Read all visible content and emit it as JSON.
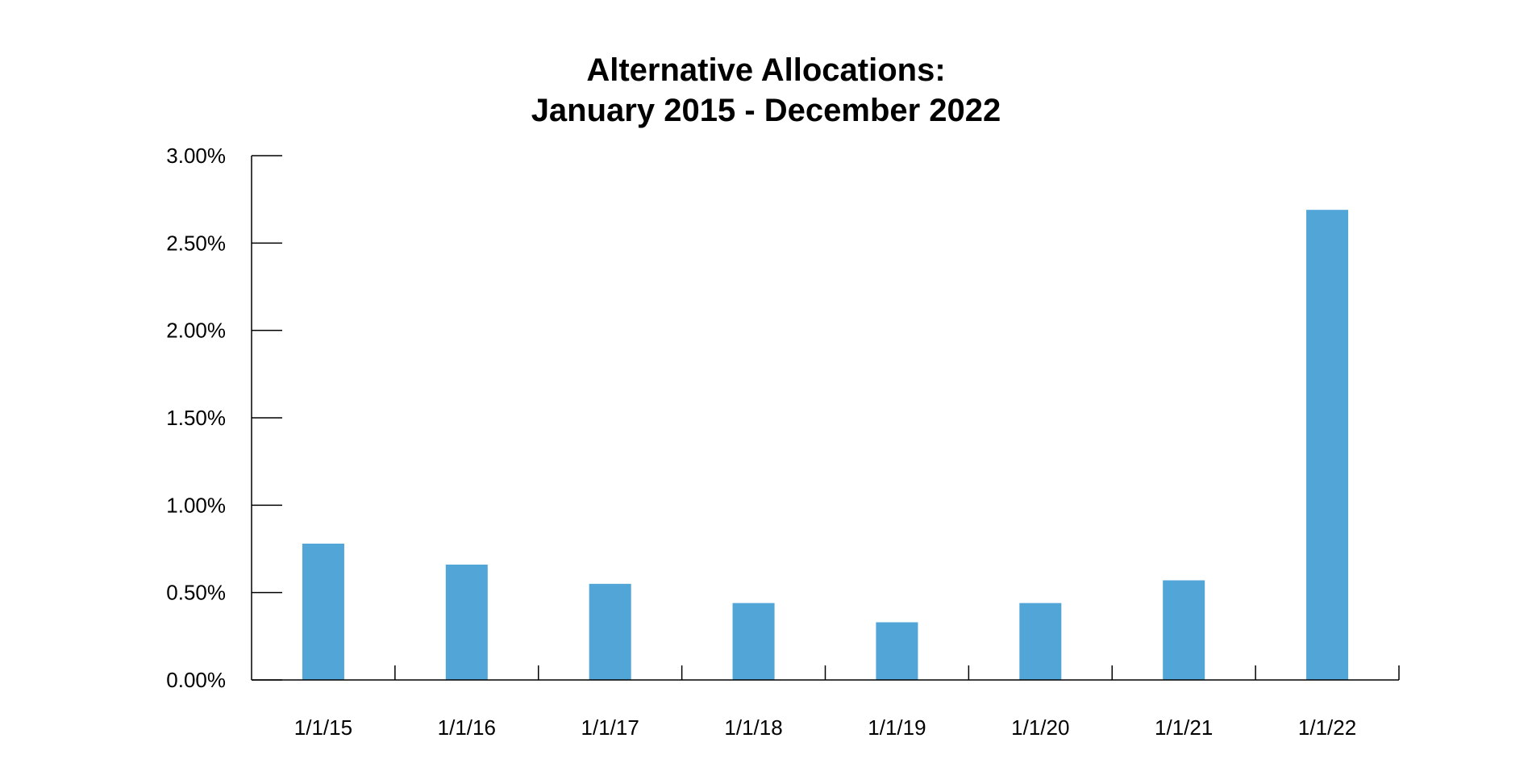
{
  "chart_data": {
    "type": "bar",
    "title": "Alternative Allocations:",
    "subtitle": "January 2015 - December 2022",
    "xlabel": "",
    "ylabel": "",
    "categories": [
      "1/1/15",
      "1/1/16",
      "1/1/17",
      "1/1/18",
      "1/1/19",
      "1/1/20",
      "1/1/21",
      "1/1/22"
    ],
    "values": [
      0.78,
      0.66,
      0.55,
      0.44,
      0.33,
      0.44,
      0.57,
      2.69
    ],
    "ylim": [
      0,
      3
    ],
    "yticks": [
      0,
      0.5,
      1.0,
      1.5,
      2.0,
      2.5,
      3.0
    ],
    "ytick_labels": [
      "0.00%",
      "0.50%",
      "1.00%",
      "1.50%",
      "2.00%",
      "2.50%",
      "3.00%"
    ],
    "grid": false,
    "legend": "none",
    "bar_color": "#51A5D7",
    "axis_color": "#000000"
  }
}
